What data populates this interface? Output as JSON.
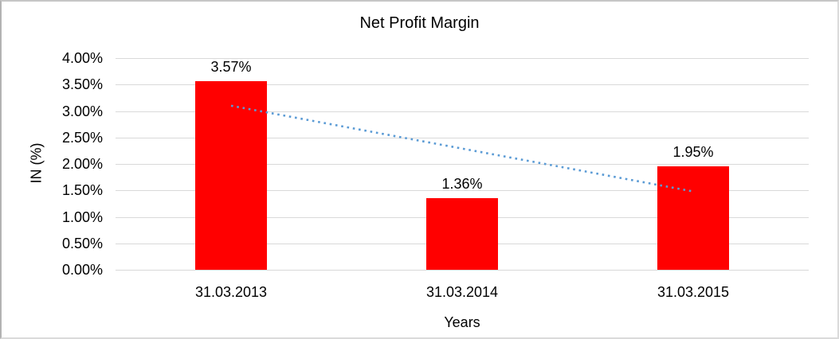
{
  "chart_data": {
    "type": "bar",
    "title": "Net Profit Margin",
    "xlabel": "Years",
    "ylabel": "IN (%)",
    "categories": [
      "31.03.2013",
      "31.03.2014",
      "31.03.2015"
    ],
    "values": [
      3.57,
      1.36,
      1.95
    ],
    "data_labels": [
      "3.57%",
      "1.36%",
      "1.95%"
    ],
    "ylim": [
      0,
      4
    ],
    "ytick_step": 0.5,
    "ytick_labels": [
      "0.00%",
      "0.50%",
      "1.00%",
      "1.50%",
      "2.00%",
      "2.50%",
      "3.00%",
      "3.50%",
      "4.00%"
    ],
    "grid": true,
    "legend": "none",
    "bar_color": "#ff0000",
    "gridline_color": "#d9d9d9",
    "text_color": "#000000",
    "trendline": {
      "style": "dotted",
      "color": "#5b9bd5",
      "start_value": 3.1,
      "end_value": 1.48
    }
  }
}
